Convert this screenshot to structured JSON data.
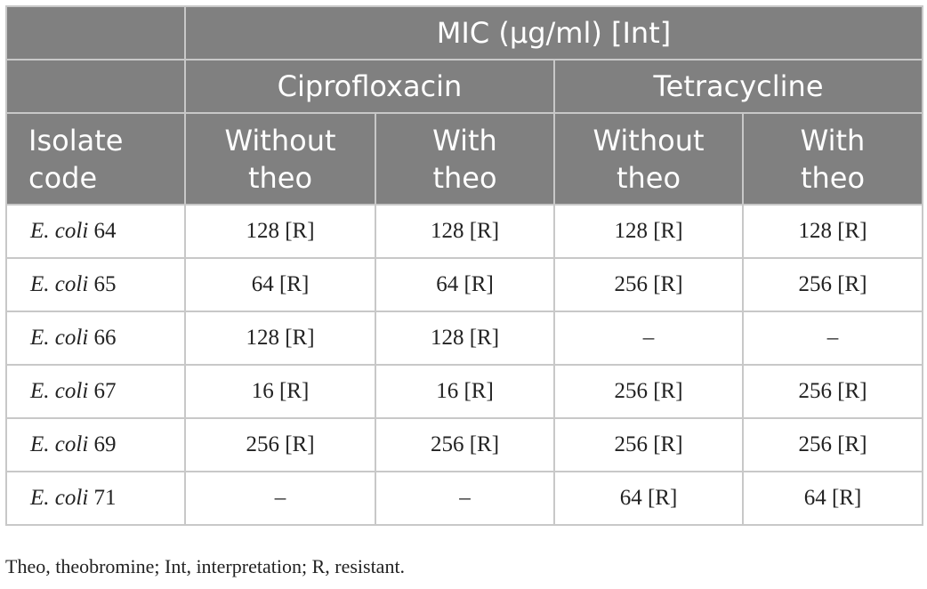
{
  "table": {
    "header": {
      "group": "MIC (μg/ml) [Int]",
      "drugs": [
        "Ciprofloxacin",
        "Tetracycline"
      ],
      "isolate": "Isolate code",
      "conditions": [
        "Without theo",
        "With theo",
        "Without theo",
        "With theo"
      ]
    },
    "rows": [
      {
        "species": "E. coli",
        "number": "64",
        "cells": [
          "128 [R]",
          "128 [R]",
          "128 [R]",
          "128 [R]"
        ]
      },
      {
        "species": "E. coli",
        "number": "65",
        "cells": [
          "64 [R]",
          "64 [R]",
          "256 [R]",
          "256 [R]"
        ]
      },
      {
        "species": "E. coli",
        "number": "66",
        "cells": [
          "128 [R]",
          "128 [R]",
          "–",
          "–"
        ]
      },
      {
        "species": "E. coli",
        "number": "67",
        "cells": [
          "16 [R]",
          "16 [R]",
          "256 [R]",
          "256 [R]"
        ]
      },
      {
        "species": "E. coli",
        "number": "69",
        "cells": [
          "256 [R]",
          "256 [R]",
          "256 [R]",
          "256 [R]"
        ]
      },
      {
        "species": "E. coli",
        "number": "71",
        "cells": [
          "–",
          "–",
          "64 [R]",
          "64 [R]"
        ]
      }
    ]
  },
  "footnote": "Theo, theobromine; Int, interpretation; R, resistant."
}
